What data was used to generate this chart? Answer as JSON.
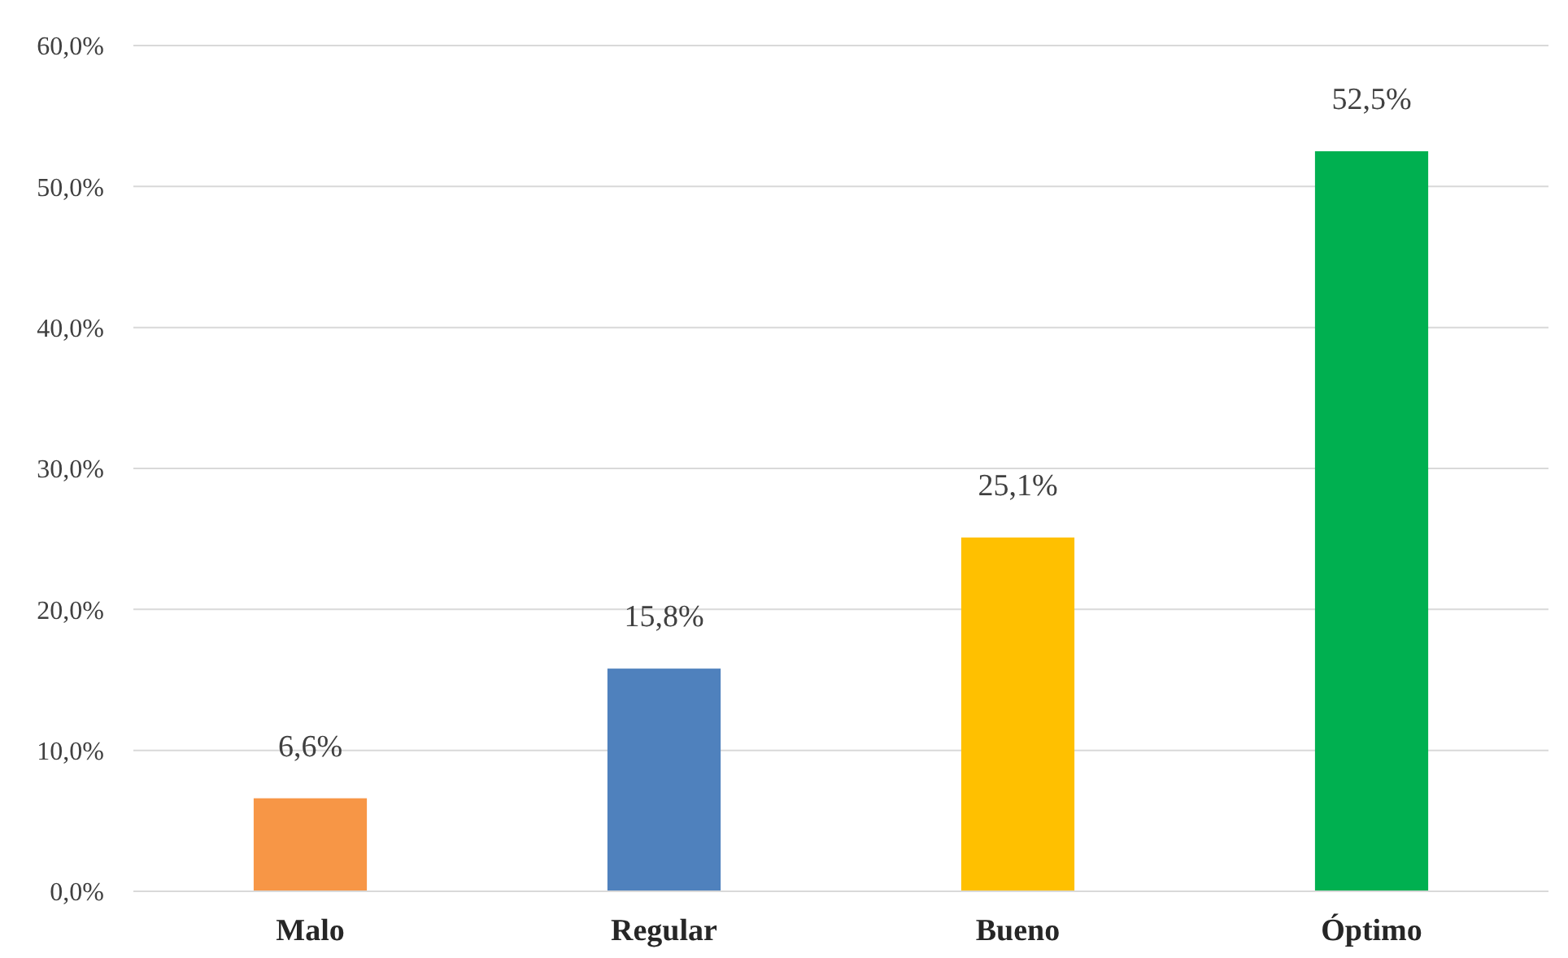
{
  "chart_data": {
    "type": "bar",
    "categories": [
      "Malo",
      "Regular",
      "Bueno",
      "Óptimo"
    ],
    "values": [
      6.6,
      15.8,
      25.1,
      52.5
    ],
    "colors": [
      "#f79646",
      "#4f81bd",
      "#ffc000",
      "#00b050"
    ],
    "value_labels": [
      "6,6%",
      "15,8%",
      "25,1%",
      "52,5%"
    ],
    "ylim": [
      0,
      60
    ],
    "yticks": [
      {
        "value": 0,
        "label": "0,0%"
      },
      {
        "value": 10,
        "label": "10,0%"
      },
      {
        "value": 20,
        "label": "20,0%"
      },
      {
        "value": 30,
        "label": "30,0%"
      },
      {
        "value": 40,
        "label": "40,0%"
      },
      {
        "value": 50,
        "label": "50,0%"
      },
      {
        "value": 60,
        "label": "60,0%"
      }
    ],
    "grid": "y"
  }
}
